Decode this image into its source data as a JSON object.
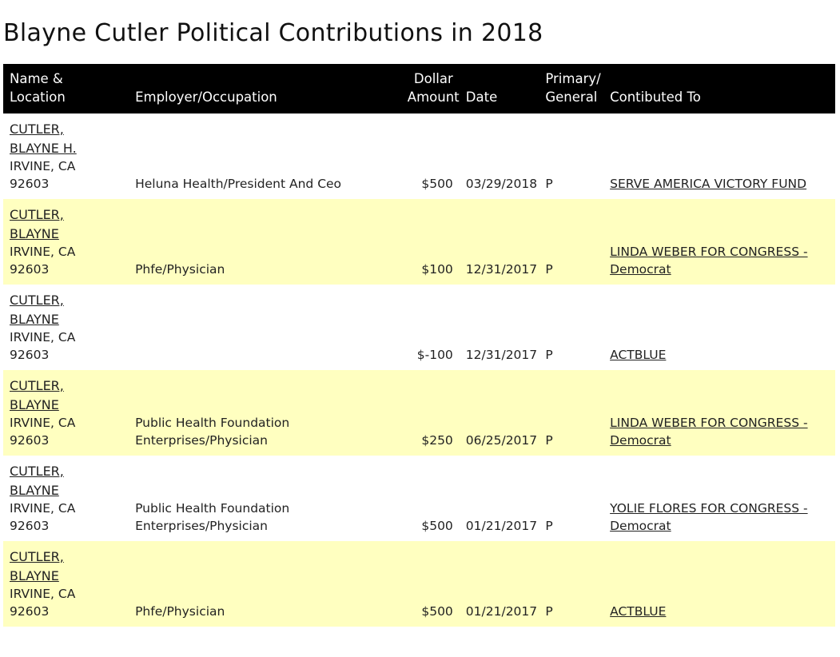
{
  "page": {
    "title": "Blayne Cutler Political Contributions in 2018"
  },
  "table": {
    "headers": {
      "name": [
        "Name &",
        "Location"
      ],
      "employer": "Employer/Occupation",
      "amount": [
        "Dollar",
        "Amount"
      ],
      "date": "Date",
      "pg": [
        "Primary/",
        "General"
      ],
      "recipient": "Contibuted To"
    },
    "rows": [
      {
        "name": [
          "CUTLER,",
          "BLAYNE H."
        ],
        "city": "IRVINE, CA",
        "zip": "92603",
        "employer": [
          "Heluna Health/President And Ceo"
        ],
        "amount": "$500",
        "date": "03/29/2018",
        "pg": "P",
        "recipient": [
          "SERVE AMERICA VICTORY FUND"
        ]
      },
      {
        "name": [
          "CUTLER,",
          "BLAYNE"
        ],
        "city": "IRVINE, CA",
        "zip": "92603",
        "employer": [
          "Phfe/Physician"
        ],
        "amount": "$100",
        "date": "12/31/2017",
        "pg": "P",
        "recipient": [
          "LINDA WEBER FOR CONGRESS -",
          "Democrat"
        ]
      },
      {
        "name": [
          "CUTLER,",
          "BLAYNE"
        ],
        "city": "IRVINE, CA",
        "zip": "92603",
        "employer": [],
        "amount": "$-100",
        "date": "12/31/2017",
        "pg": "P",
        "recipient": [
          "ACTBLUE"
        ]
      },
      {
        "name": [
          "CUTLER,",
          "BLAYNE"
        ],
        "city": "IRVINE, CA",
        "zip": "92603",
        "employer": [
          "Public Health Foundation",
          "Enterprises/Physician"
        ],
        "amount": "$250",
        "date": "06/25/2017",
        "pg": "P",
        "recipient": [
          "LINDA WEBER FOR CONGRESS -",
          "Democrat"
        ]
      },
      {
        "name": [
          "CUTLER,",
          "BLAYNE"
        ],
        "city": "IRVINE, CA",
        "zip": "92603",
        "employer": [
          "Public Health Foundation",
          "Enterprises/Physician"
        ],
        "amount": "$500",
        "date": "01/21/2017",
        "pg": "P",
        "recipient": [
          "YOLIE FLORES FOR CONGRESS -",
          "Democrat"
        ]
      },
      {
        "name": [
          "CUTLER,",
          "BLAYNE"
        ],
        "city": "IRVINE, CA",
        "zip": "92603",
        "employer": [
          "Phfe/Physician"
        ],
        "amount": "$500",
        "date": "01/21/2017",
        "pg": "P",
        "recipient": [
          "ACTBLUE"
        ]
      }
    ]
  }
}
